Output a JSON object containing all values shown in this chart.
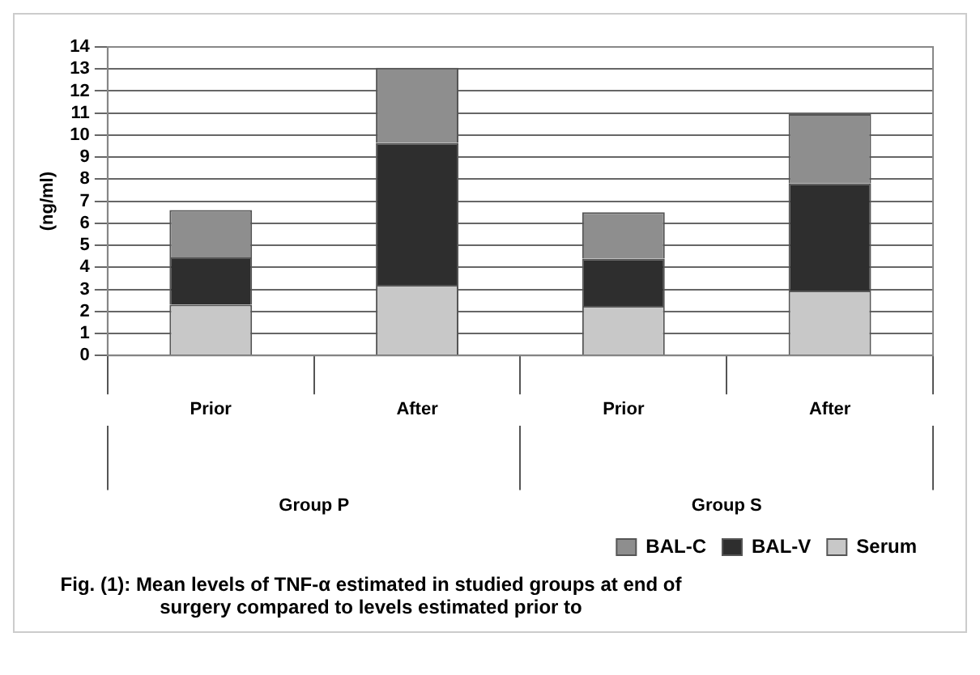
{
  "chart_data": {
    "type": "bar",
    "ylabel": "(ng/ml)",
    "categories": [
      "Prior",
      "After",
      "Prior",
      "After"
    ],
    "stacked": true,
    "series": [
      {
        "name": "Serum",
        "color": "#c8c8c8",
        "values": [
          2.3,
          3.2,
          2.25,
          2.95
        ]
      },
      {
        "name": "BAL-V",
        "color": "#2e2e2e",
        "values": [
          2.15,
          6.45,
          2.15,
          4.85
        ]
      },
      {
        "name": "BAL-C",
        "color": "#8e8e8e",
        "values": [
          2.15,
          3.4,
          2.1,
          3.15
        ]
      }
    ],
    "ylim": [
      0,
      14
    ],
    "yticks": [
      0,
      1,
      2,
      3,
      4,
      5,
      6,
      7,
      8,
      9,
      10,
      11,
      12,
      13,
      14
    ],
    "grid": "y",
    "legend": "bottom right",
    "annotations": [
      "Group P",
      "Group S",
      "Fig. (1): Mean levels of TNF-α estimated in studied groups at end of surgery compared to levels estimated prior to"
    ]
  }
}
